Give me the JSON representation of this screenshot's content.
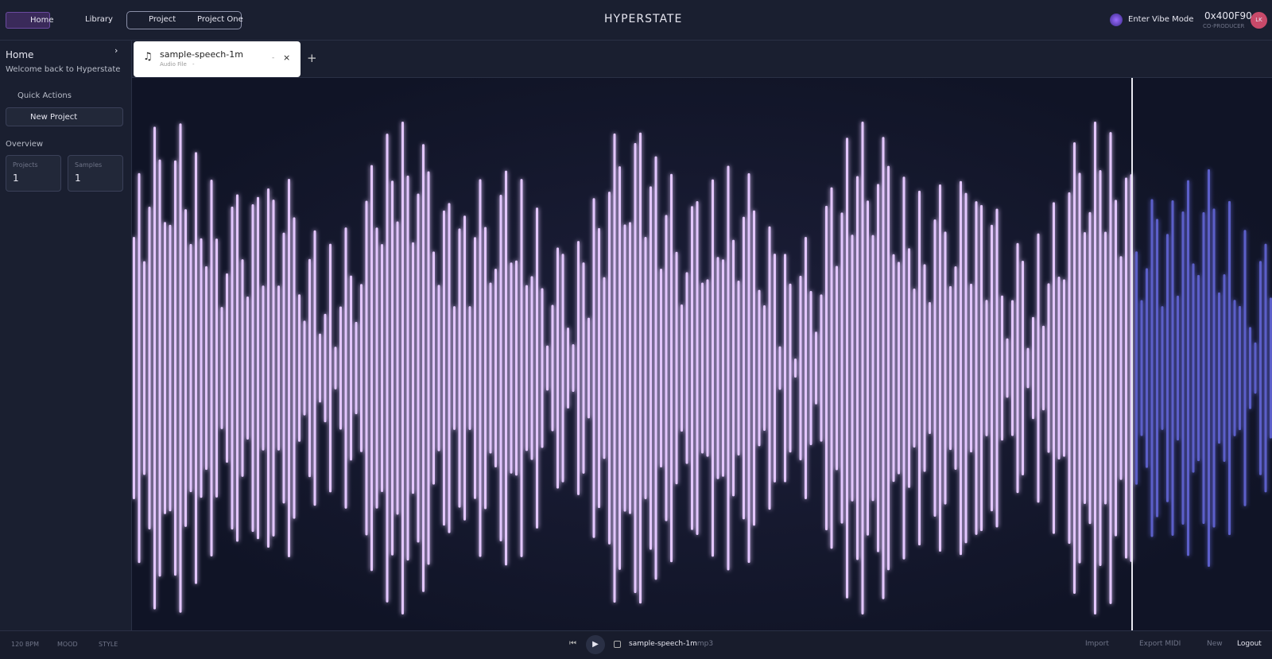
{
  "header": {
    "nav_home": "Home",
    "nav_library": "Library",
    "project_label": "Project",
    "project_name": "Project One",
    "app_title": "HYPERSTATE",
    "vibe_button": "Enter Vibe Mode",
    "user_id": "0x400F90",
    "user_role": "CO-PRODUCER",
    "avatar": "LK"
  },
  "sidebar": {
    "title": "Home",
    "subtitle": "Welcome back to Hyperstate",
    "quick_actions": "Quick Actions",
    "new_project": "New Project",
    "overview": "Overview",
    "stats": [
      {
        "label": "Projects",
        "value": 1
      },
      {
        "label": "Samples",
        "value": 1
      }
    ]
  },
  "tab": {
    "name": "sample-speech-1m",
    "kind": "Audio File",
    "meta": "-",
    "minimize": "-",
    "close": "×",
    "add": "+"
  },
  "footer": {
    "bpm": "120 BPM",
    "mood": "MOOD",
    "style": "STYLE",
    "file_name": "sample-speech-1m",
    "file_ext": "mp3",
    "import": "Import",
    "export_midi": "Export MIDI",
    "new": "New",
    "logout": "Logout"
  }
}
